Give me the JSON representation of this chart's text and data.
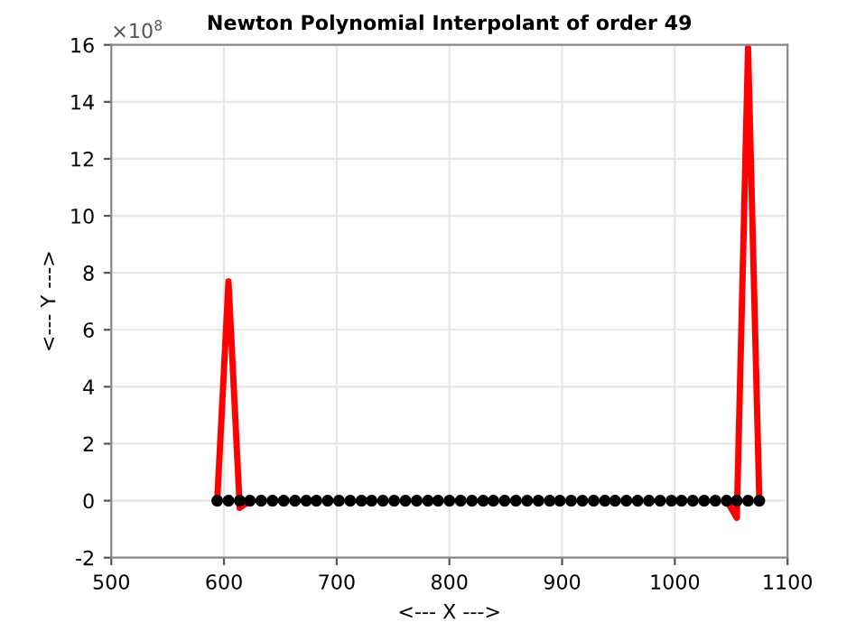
{
  "chart_data": {
    "type": "line",
    "title": "Newton Polynomial Interpolant of order 49",
    "xlabel": "<--- X --->",
    "ylabel": "<--- Y --->",
    "annotations": [
      "×10$^{8}$"
    ],
    "x": [
      594,
      604,
      614,
      623,
      633,
      643,
      653,
      663,
      673,
      682,
      692,
      702,
      712,
      722,
      731,
      741,
      751,
      761,
      771,
      781,
      790,
      800,
      810,
      820,
      830,
      839,
      849,
      859,
      869,
      879,
      889,
      898,
      908,
      918,
      928,
      938,
      947,
      957,
      967,
      977,
      987,
      997,
      1006,
      1016,
      1026,
      1036,
      1046,
      1055,
      1065,
      1075
    ],
    "series": [
      {
        "color": "#ff0000",
        "marker": "none",
        "values": [
          0,
          7.7,
          -0.25,
          0,
          null,
          null,
          null,
          null,
          null,
          null,
          null,
          null,
          null,
          null,
          null,
          null,
          null,
          null,
          null,
          null,
          null,
          null,
          null,
          null,
          null,
          null,
          null,
          null,
          null,
          null,
          null,
          null,
          null,
          null,
          null,
          null,
          null,
          null,
          null,
          null,
          null,
          null,
          null,
          null,
          null,
          null,
          0,
          -0.6,
          15.9,
          0
        ]
      },
      {
        "type": "scatter",
        "color": "#000000",
        "marker": "circle",
        "values": [
          0,
          0,
          0,
          0,
          0,
          0,
          0,
          0,
          0,
          0,
          0,
          0,
          0,
          0,
          0,
          0,
          0,
          0,
          0,
          0,
          0,
          0,
          0,
          0,
          0,
          0,
          0,
          0,
          0,
          0,
          0,
          0,
          0,
          0,
          0,
          0,
          0,
          0,
          0,
          0,
          0,
          0,
          0,
          0,
          0,
          0,
          0,
          0,
          0,
          0
        ]
      }
    ],
    "xlim": [
      500,
      1100
    ],
    "xticks": [
      500,
      600,
      700,
      800,
      900,
      1000,
      1100
    ],
    "ylim": [
      -2,
      16
    ],
    "yticks": [
      -2,
      0,
      2,
      4,
      6,
      8,
      10,
      12,
      14,
      16
    ],
    "grid": true,
    "line_style": "solid"
  }
}
